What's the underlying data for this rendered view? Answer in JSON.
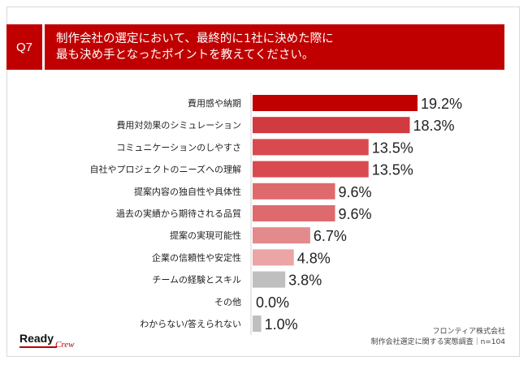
{
  "header": {
    "badge": "Q7",
    "question": "制作会社の選定において、最終的に1社に決めた際に\n最も決め手となったポイントを教えてください。"
  },
  "chart_data": {
    "type": "bar",
    "orientation": "horizontal",
    "categories": [
      "費用感や納期",
      "費用対効果のシミュレーション",
      "コミュニケーションのしやすさ",
      "自社やプロジェクトのニーズへの理解",
      "提案内容の独自性や具体性",
      "過去の実績から期待される品質",
      "提案の実現可能性",
      "企業の信頼性や安定性",
      "チームの経験とスキル",
      "その他",
      "わからない/答えられない"
    ],
    "values": [
      19.2,
      18.3,
      13.5,
      13.5,
      9.6,
      9.6,
      6.7,
      4.8,
      3.8,
      0.0,
      1.0
    ],
    "value_labels": [
      "19.2%",
      "18.3%",
      "13.5%",
      "13.5%",
      "9.6%",
      "9.6%",
      "6.7%",
      "4.8%",
      "3.8%",
      "0.0%",
      "1.0%"
    ],
    "colors": [
      "#c00000",
      "#d13a3f",
      "#d94a50",
      "#d94a50",
      "#df6a6e",
      "#df6a6e",
      "#e38a8c",
      "#eba5a7",
      "#bfbfbf",
      "#bfbfbf",
      "#bfbfbf"
    ],
    "title": "",
    "xlabel": "",
    "ylabel": "",
    "xlim": [
      0,
      20
    ],
    "grid": false,
    "legend": "none"
  },
  "logo": {
    "ready": "Ready",
    "crew": "Crew"
  },
  "source": {
    "company": "フロンティア株式会社",
    "survey": "制作会社選定に関する実態調査｜n=104"
  }
}
